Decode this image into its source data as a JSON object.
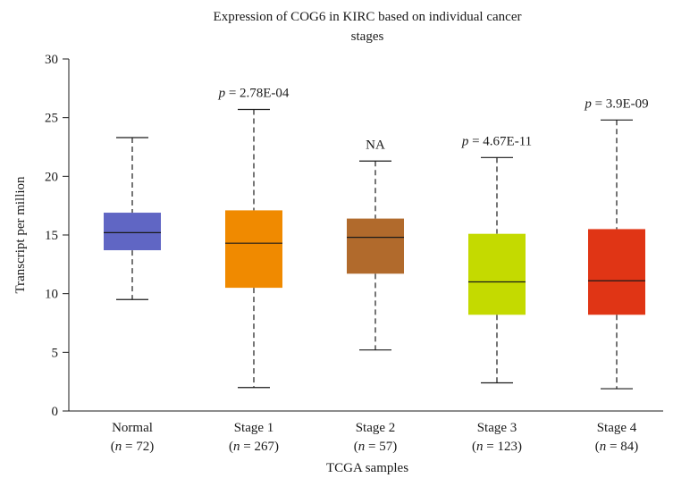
{
  "chart_data": {
    "type": "box",
    "title": "Expression of COG6 in KIRC based on individual cancer",
    "title_line2": "stages",
    "xlabel": "TCGA samples",
    "ylabel": "Transcript per million",
    "ylim": [
      0,
      30
    ],
    "yticks": [
      "0",
      "5",
      "10",
      "15",
      "20",
      "25",
      "30"
    ],
    "grid": false,
    "legend": "none",
    "categories": [
      {
        "label": "Normal",
        "n_label": "(n = 72)",
        "n_pre": "(",
        "n_var": "n",
        "n_post": " = 72)",
        "min": 9.5,
        "q1": 13.7,
        "median": 15.2,
        "q3": 16.9,
        "max": 23.3,
        "color": "#6066c4",
        "annotation": "",
        "ann_var": "",
        "ann_post": ""
      },
      {
        "label": "Stage 1",
        "n_label": "(n = 267)",
        "n_pre": "(",
        "n_var": "n",
        "n_post": " = 267)",
        "min": 2.0,
        "q1": 10.5,
        "median": 14.3,
        "q3": 17.1,
        "max": 25.7,
        "color": "#f08a00",
        "annotation": "p = 2.78E-04",
        "ann_var": "p",
        "ann_post": " = 2.78E-04"
      },
      {
        "label": "Stage 2",
        "n_label": "(n = 57)",
        "n_pre": "(",
        "n_var": "n",
        "n_post": " = 57)",
        "min": 5.2,
        "q1": 11.7,
        "median": 14.8,
        "q3": 16.4,
        "max": 21.3,
        "color": "#b16a2c",
        "annotation": "NA",
        "ann_var": "",
        "ann_post": "NA"
      },
      {
        "label": "Stage 3",
        "n_label": "(n = 123)",
        "n_pre": "(",
        "n_var": "n",
        "n_post": " = 123)",
        "min": 2.4,
        "q1": 8.2,
        "median": 11.0,
        "q3": 15.1,
        "max": 21.6,
        "color": "#c4da00",
        "annotation": "p = 4.67E-11",
        "ann_var": "p",
        "ann_post": " = 4.67E-11"
      },
      {
        "label": "Stage 4",
        "n_label": "(n = 84)",
        "n_pre": "(",
        "n_var": "n",
        "n_post": " = 84)",
        "min": 1.9,
        "q1": 8.2,
        "median": 11.1,
        "q3": 15.5,
        "max": 24.8,
        "color": "#e03515",
        "annotation": "p = 3.9E-09",
        "ann_var": "p",
        "ann_post": " = 3.9E-09"
      }
    ]
  }
}
